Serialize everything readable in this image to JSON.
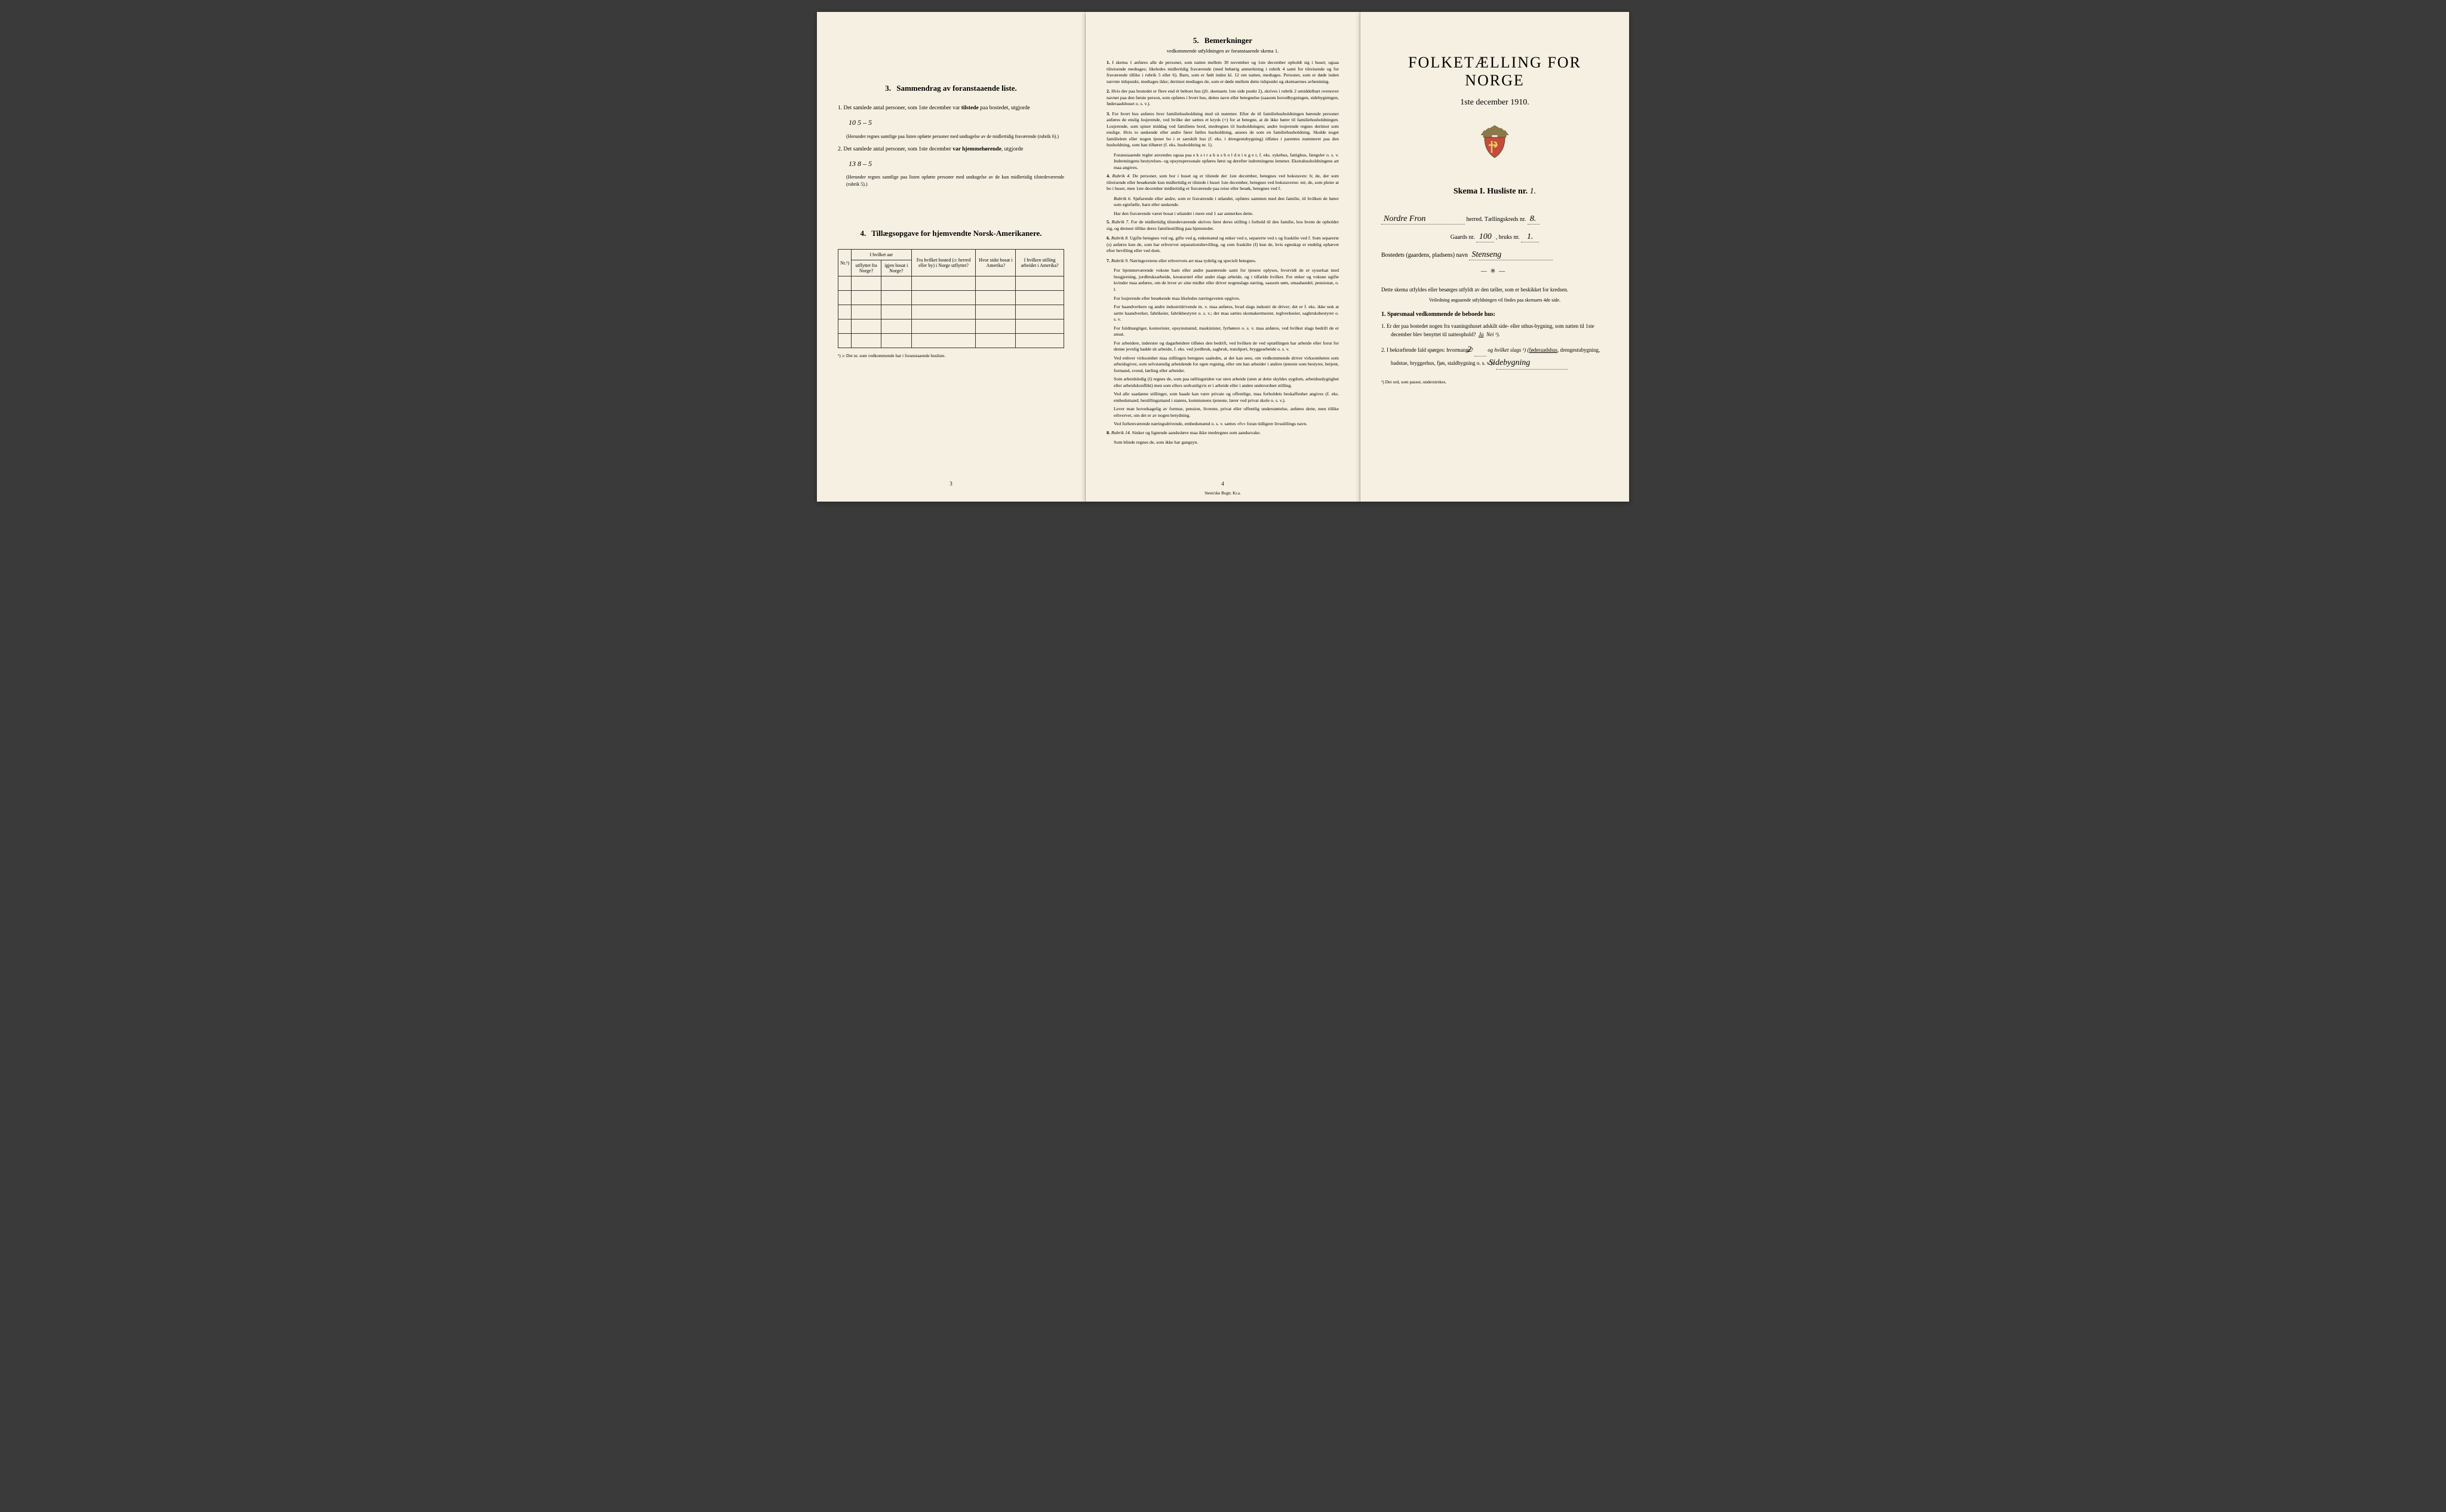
{
  "page_left": {
    "section3": {
      "number": "3.",
      "title": "Sammendrag av foranstaaende liste.",
      "item1_pre": "1. Det samlede antal personer, som 1ste december var ",
      "item1_bold": "tilstede",
      "item1_post": " paa bostedet, utgjorde ",
      "item1_hw": "10   5 – 5",
      "item1_note": "(Herunder regnes samtlige paa listen opførte personer med undtagelse av de midler­tidig fraværende (rubrik 6).)",
      "item2_pre": "2. Det samlede antal personer, som 1ste december ",
      "item2_bold": "var hjemmehørende",
      "item2_post": ", ut­gjorde ",
      "item2_hw": "13   8 – 5",
      "item2_note": "(Herunder regnes samtlige paa listen opførte personer med undtagelse av de kun midler­tidig tilstedeværende (rubrik 5).)"
    },
    "section4": {
      "number": "4.",
      "title": "Tillægsopgave for hjemvendte Norsk-Amerikanere.",
      "headers": {
        "nr": "Nr.¹)",
        "col1_top": "I hvilket aar",
        "col1a": "utflyttet fra Norge?",
        "col1b": "igjen bosat i Norge?",
        "col2": "Fra hvilket bosted (ɔ: herred eller by) i Norge utflyttet?",
        "col3": "Hvor sidst bosat i Amerika?",
        "col4": "I hvilken stilling arbeidet i Amerika?"
      },
      "footnote": "¹) ɔ: Det nr. som vedkommende har i foranstaaende husliste."
    },
    "page_number": "3"
  },
  "page_middle": {
    "section5": {
      "number": "5.",
      "title": "Bemerkninger",
      "subtitle": "vedkommende utfyldningen av foranstaaende skema 1."
    },
    "items": [
      {
        "n": "1.",
        "text": "I skema 1 anføres alle de personer, som natten mellem 30 november og 1ste december opholdt sig i huset; ogsaa tilreisende medtages; likeledes midlertidig fraværende (med behørig anmerkning i rubrik 4 samt for tilreisende og for fraværende tillike i rubrik 5 eller 6). Barn, som er født inden kl. 12 om natten, medtages. Personer, som er døde inden nævnte tidspunkt, medtages ikke; derimot medtages de, som er døde mellem dette tidspunkt og skemaernes avhentning."
      },
      {
        "n": "2.",
        "text": "Hvis der paa bostedet er flere end ét beboet hus (jfr. skemaets 1ste side punkt 2), skrives i rubrik 2 umiddelbart ovenover navnet paa den første person, som opføres i hvert hus, dettes navn eller betegnelse (saasom hovedbygningen, sidebygningen, føderaadshuset o. s. v.)."
      },
      {
        "n": "3.",
        "text": "For hvert hus anføres hver familiehusholdning med sit nummer. Efter de til familiehusholdningen hørende personer anføres de enslig losjerende, ved hvilke der sættes et kryds (×) for at betegne, at de ikke hører til familiehusholdningen. Losjerende, som spiser middag ved familiens bord, medregnes til husholdningen; andre losjerende regnes derimot som enslige. Hvis to søskende eller andre fører fælles husholdning, ansees de som en familiehusholdning. Skulde noget familielem eller nogen tjener bo i et særskilt hus (f. eks. i drengestu­bygning) tilføies i parentes nummeret paa den husholdning, som han tilhører (f. eks. husholdning nr. 1)."
      },
      {
        "sub": true,
        "text": "Foranstaaende regler anvendes ogsaa paa e k s t r a h u s h o l d n i n g e r, f. eks. syke­hus, fattighus, fængsler o. s. v. Indretningens bestyrelses- og opsynspersonale opføres først og derefter indretningens lemmer. Ekstrahusholdningens art maa angives."
      },
      {
        "n": "4.",
        "rubrik": "Rubrik 4.",
        "text": "De personer, som bor i huset og er tilstede der 1ste december, betegnes ved bokstaven: b; de, der som tilreisende eller besøkende kun midlertidig er tilstede i huset 1ste december, betegnes ved bokstaverne: mt; de, som pleier at bo i huset, men 1ste december midlertidig er fraværende paa reise eller besøk, betegnes ved f."
      },
      {
        "sub": true,
        "rubrik": "Rubrik 6.",
        "text": "Sjøfarende eller andre, som er fraværende i utlandet, opføres sammen med den familie, til hvilken de hører som egtefælle, barn eller søskende."
      },
      {
        "sub": true,
        "text": "Har den fraværende været bosat i utlandet i mere end 1 aar anmerkes dette."
      },
      {
        "n": "5.",
        "rubrik": "Rubrik 7.",
        "text": "For de midlertidig tilstedeværende skrives først deres stilling i forhold til den familie, hos hvem de opholder sig, og dernest tillike deres familiestilling paa hjemstedet."
      },
      {
        "n": "6.",
        "rubrik": "Rubrik 8.",
        "text": "Ugifte betegnes ved ug, gifte ved g, enkemænd og enker ved e, separerte ved s og fraskilte ved f. Som separerte (s) anføres kun de, som har erhvervet separations­bevilling, og som fraskilte (f) kun de, hvis egteskap er endelig ophævet efter bevilling eller ved dom."
      },
      {
        "n": "7.",
        "rubrik": "Rubrik 9.",
        "text": "Næringsveiens eller erhvervets art maa tydelig og specielt betegnes."
      },
      {
        "sub": true,
        "text": "For hjemmeværende voksne barn eller andre paarørende samt for tjenere oplyses, hvor­vidt de er sysselsat med husgjerning, jordbruksarbeide, kreaturstel eller andet slags arbeide, og i tilfælde hvilket. For enker og voksne ugifte kvinder maa anføres, om de lever av sine midler eller driver nogenslags næring, saasom søm, smaahandel, pensionat, o. l."
      },
      {
        "sub": true,
        "text": "For losjerende eller besøkende maa likeledes næringsveien opgives."
      },
      {
        "sub": true,
        "text": "For haandverkere og andre industridrivende m. v. maa anføres, hvad slags industri de driver; det er f. eks. ikke nok at sætte haandverker, fabrikeier, fabrikbestyrer o. s. v.; der maa sættes skomakermester, teglverkseier, sagbruksbestyrer o. s. v."
      },
      {
        "sub": true,
        "text": "For fuldmægtiger, kontorister, opsynsmænd, maskinister, fyrbøtere o. s. v. maa anføres, ved hvilket slags bedrift de er ansat."
      },
      {
        "sub": true,
        "text": "For arbeidere, inderster og dagarbeidere tilføies den bedrift, ved hvilken de ved op­tællingen har arbeide eller forut for denne jevnlig hadde sit arbeide, f. eks. ved jordbruk, sagbruk, træsliperi, bryggearbeide o. s. v."
      },
      {
        "sub": true,
        "text": "Ved enhver virksomhet maa stillingen betegnes saaledes, at det kan sees, om ved­kommende driver virksomheten som arbeidsgiver, som selvstændig arbeidende for egen regning, eller om han arbeider i andres tjeneste som bestyrer, betjent, formand, svend, lærling eller arbeider."
      },
      {
        "sub": true,
        "text": "Som arbeidsledig (l) regnes de, som paa tællingstiden var uten arbeide (uten at dette skyldes sygdom, arbeidsudygtighet eller arbeidskonflikt) men som ellers sedvanligvis er i arbeide eller i anden underordnet stilling."
      },
      {
        "sub": true,
        "text": "Ved alle saadanne stillinger, som baade kan være private og offentlige, maa for­holdets beskaffenhet angives (f. eks. embedsmand, bestillingsmand i statens, kommunens tjeneste, lærer ved privat skole o. s. v.)."
      },
      {
        "sub": true,
        "text": "Lever man hovedsagelig av formue, pension, livrente, privat eller offentlig under­støttelse, anføres dette, men tillike erhvervet, om det er av nogen betydning."
      },
      {
        "sub": true,
        "text": "Ved forhenværende næringsdrivende, embedsmænd o. s. v. sættes «fv» foran tidligere livsstillings navn."
      },
      {
        "n": "8.",
        "rubrik": "Rubrik 14.",
        "text": "Sinker og lignende aandssløve maa ikke medregnes som aandssvake."
      },
      {
        "sub": true,
        "text": "Som blinde regnes de, som ikke har gangsyn."
      }
    ],
    "page_number": "4",
    "printer": "Steen'ske Bogtr. Kr.a."
  },
  "page_right": {
    "main_title": "FOLKETÆLLING FOR NORGE",
    "date": "1ste december 1910.",
    "skema_label": "Skema I.  Husliste nr.",
    "skema_hw": "1.",
    "herred_hw": "Nordre Fron",
    "herred_label": "herred.  Tællingskreds nr.",
    "kreds_hw": "8.",
    "gaard_label": "Gaards nr.",
    "gaard_hw": "100",
    "bruk_label": ", bruks nr.",
    "bruk_hw": "1.",
    "bosted_label": "Bostedets (gaardens, pladsens) navn",
    "bosted_hw": "Stenseng",
    "desc1": "Dette skema utfyldes eller besørges utfyldt av den tæller, som er beskikket for kredsen.",
    "desc2": "Veiledning angaaende utfyldningen vil findes paa skemaets 4de side.",
    "q_head": "1. Spørsmaal vedkommende de beboede hus:",
    "q1": "1. Er der paa bostedet nogen fra vaaningshuset adskilt side- eller uthus-bygning, som natten til 1ste december blev benyttet til natteophold?",
    "q1_ja": "Ja",
    "q1_nei": "Nei ¹).",
    "q2_pre": "2. I bekræftende fald spørges: hvormange?",
    "q2_hw1": "2",
    "q2_mid": "og hvilket slags ¹) (",
    "q2_underline": "føderaadshus",
    "q2_post": ", drengestubygning, badstue, bryggerhus, fjøs, stald­bygning o. s. v.)?",
    "q2_hw2": "Sidebygning",
    "footnote": "¹) Det ord, som passer, understrekes."
  }
}
